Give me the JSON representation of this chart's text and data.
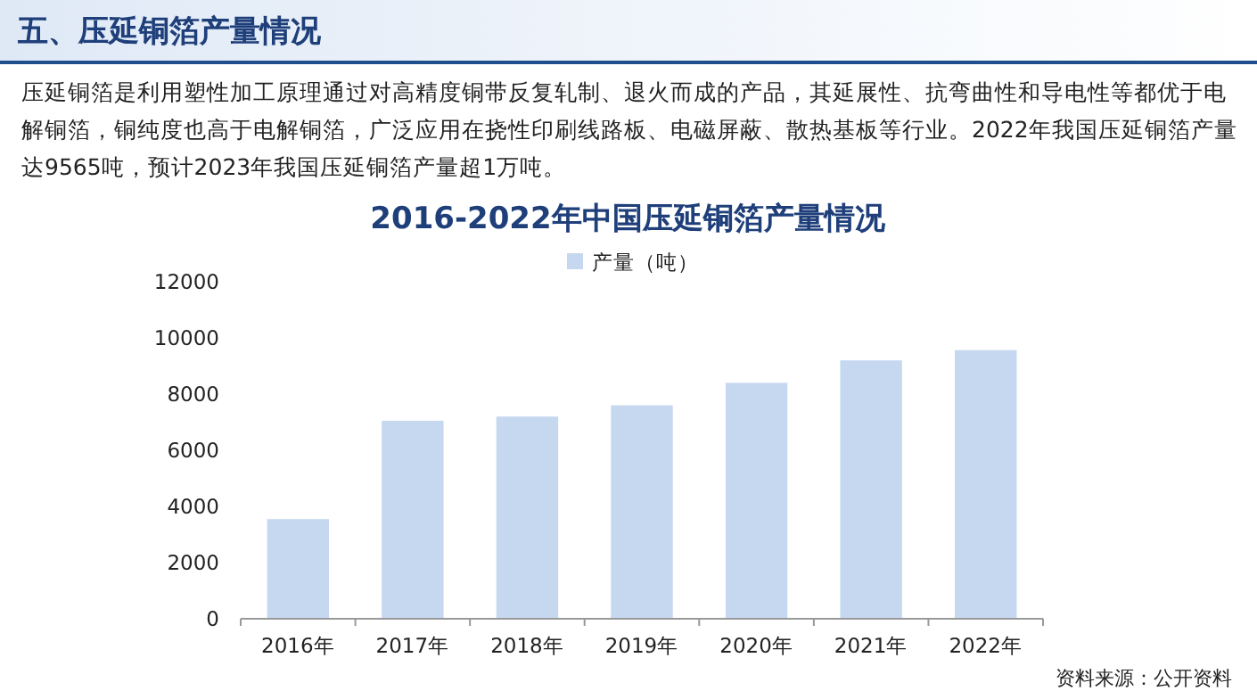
{
  "chart_data": {
    "type": "bar",
    "title": "2016-2022年中国压延铜箔产量情况",
    "annotations": [
      "五、压延铜箔产量情况",
      "压延铜箔是利用塑性加工原理通过对高精度铜带反复轧制、退火而成的产品，其延展性、抗弯曲性和导电性等都优于电解铜箔，铜纯度也高于电解铜箔，广泛应用在挠性印刷线路板、电磁屏蔽、散热基板等行业。2022年我国压延铜箔产量达9565吨，预计2023年我国压延铜箔产量超1万吨。",
      "资料来源：公开资料"
    ],
    "categories": [
      "2016年",
      "2017年",
      "2018年",
      "2019年",
      "2020年",
      "2021年",
      "2022年"
    ],
    "series": [
      {
        "name": "产量（吨）",
        "color": "#c6d8f0",
        "values": [
          3550,
          7050,
          7200,
          7600,
          8400,
          9200,
          9565
        ]
      }
    ],
    "ylim": [
      0,
      12000
    ],
    "yticks": [
      0,
      2000,
      4000,
      6000,
      8000,
      10000,
      12000
    ],
    "legend": "top"
  }
}
